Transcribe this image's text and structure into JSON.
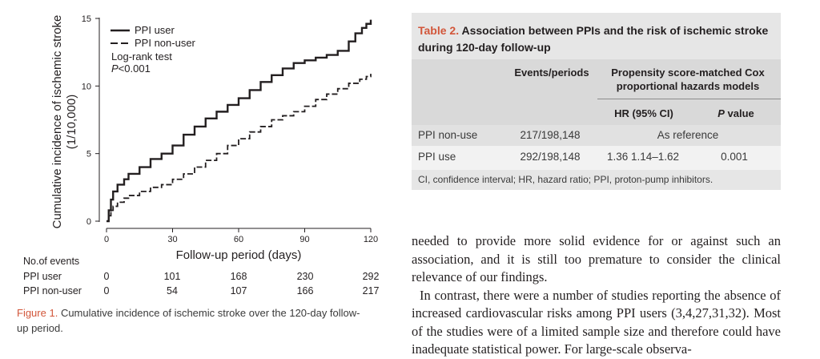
{
  "figure": {
    "label": "Figure 1.",
    "caption": "Cumulative incidence of ischemic stroke over the 120-day follow-up period.",
    "events": {
      "title": "No.of events",
      "columns": [
        "0",
        "30",
        "60",
        "90",
        "120"
      ],
      "rows": [
        {
          "label": "PPI user",
          "values": [
            "0",
            "101",
            "168",
            "230",
            "292"
          ]
        },
        {
          "label": "PPI non-user",
          "values": [
            "0",
            "54",
            "107",
            "166",
            "217"
          ]
        }
      ]
    }
  },
  "chart_data": {
    "type": "line",
    "xlabel": "Follow-up period (days)",
    "ylabel_line1": "Cumulative incidence of ischemic stroke",
    "ylabel_line2": "(1/10,000)",
    "xlim": [
      0,
      120
    ],
    "ylim": [
      0,
      15
    ],
    "x_ticks": [
      "0",
      "30",
      "60",
      "90",
      "120"
    ],
    "y_ticks": [
      "0",
      "5",
      "10",
      "15"
    ],
    "grid": false,
    "legend_placement": "top-left",
    "annotation_line1": "Log-rank test",
    "annotation_p": "P",
    "annotation_value": "<0.001",
    "series": [
      {
        "name": "PPI user",
        "style": "solid",
        "x": [
          0,
          1,
          2,
          3,
          5,
          8,
          10,
          15,
          20,
          25,
          30,
          35,
          40,
          45,
          50,
          55,
          60,
          65,
          70,
          75,
          80,
          85,
          90,
          95,
          100,
          105,
          110,
          113,
          116,
          118,
          120
        ],
        "y": [
          0,
          0.8,
          1.6,
          2.2,
          2.7,
          3.1,
          3.5,
          4.0,
          4.6,
          5.0,
          5.6,
          6.4,
          7.0,
          7.6,
          8.1,
          8.6,
          9.1,
          9.7,
          10.3,
          10.8,
          11.3,
          11.7,
          11.9,
          12.1,
          12.3,
          12.6,
          13.3,
          13.9,
          14.3,
          14.6,
          14.9
        ]
      },
      {
        "name": "PPI non-user",
        "style": "dashed",
        "x": [
          0,
          1,
          2,
          3,
          5,
          8,
          10,
          15,
          20,
          25,
          30,
          35,
          40,
          45,
          50,
          55,
          60,
          65,
          70,
          75,
          80,
          85,
          90,
          95,
          100,
          105,
          110,
          115,
          118,
          120
        ],
        "y": [
          0,
          0.4,
          0.8,
          1.1,
          1.4,
          1.7,
          1.9,
          2.2,
          2.5,
          2.7,
          3.1,
          3.5,
          4.0,
          4.5,
          5.0,
          5.6,
          6.1,
          6.6,
          7.0,
          7.5,
          7.8,
          8.1,
          8.5,
          9.0,
          9.4,
          9.8,
          10.2,
          10.5,
          10.7,
          10.9
        ]
      }
    ]
  },
  "table": {
    "label": "Table 2.",
    "title": "Association between PPIs and the risk of ischemic stroke during 120-day follow-up",
    "header": {
      "events_periods": "Events/periods",
      "model_line1": "Propensity score-matched Cox",
      "model_line2": "proportional hazards models",
      "hr": "HR (95% CI)",
      "p_italic": "P",
      "p_rest": " value"
    },
    "rows": [
      {
        "group": "PPI non-use",
        "events": "217/198,148",
        "reference": "As reference"
      },
      {
        "group": "PPI use",
        "events": "292/198,148",
        "hr": "1.36 1.14–1.62",
        "p": "0.001"
      }
    ],
    "footnote": "CI, confidence interval; HR, hazard ratio; PPI, proton-pump inhibitors."
  },
  "body_text": {
    "paragraph1": "needed to provide more solid evidence for or against such an association, and it is still too premature to consider the clinical relevance of our findings.",
    "paragraph2": "In contrast, there were a number of studies reporting the absence of increased cardiovascular risks among PPI users (3,4,27,31,32). Most of the studies were of a limited sample size and therefore could have inadequate statistical power. For large-scale observa-"
  },
  "colors": {
    "accent": "#d2563a",
    "table_header_bg": "#d9d9d9",
    "table_row_bg": "#f2f2f2",
    "table_panel_bg": "#e6e6e6",
    "text": "#231f20"
  }
}
